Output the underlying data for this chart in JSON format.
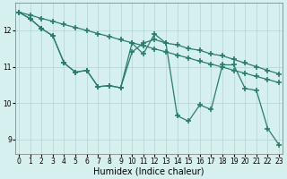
{
  "xlabel": "Humidex (Indice chaleur)",
  "x_ticks": [
    0,
    1,
    2,
    3,
    4,
    5,
    6,
    7,
    8,
    9,
    10,
    11,
    12,
    13,
    14,
    15,
    16,
    17,
    18,
    19,
    20,
    21,
    22,
    23
  ],
  "series": [
    {
      "name": "line_diagonal",
      "x": [
        0,
        1,
        2,
        3,
        4,
        5,
        6,
        7,
        8,
        9,
        10,
        11,
        12,
        13,
        14,
        15,
        16,
        17,
        18,
        19,
        20,
        21,
        22,
        23
      ],
      "y": [
        12.5,
        12.42,
        12.33,
        12.25,
        12.16,
        12.08,
        12.0,
        11.91,
        11.83,
        11.74,
        11.66,
        11.58,
        11.49,
        11.41,
        11.32,
        11.24,
        11.15,
        11.07,
        10.99,
        10.9,
        10.82,
        10.73,
        10.65,
        10.56
      ]
    },
    {
      "name": "line_medium",
      "x": [
        0,
        1,
        2,
        3,
        4,
        5,
        6,
        7,
        8,
        9,
        10,
        11,
        12,
        13,
        14,
        15,
        16,
        17,
        18,
        19,
        20,
        21,
        22,
        23
      ],
      "y": [
        12.5,
        12.32,
        12.05,
        11.85,
        11.1,
        10.85,
        10.9,
        10.45,
        10.48,
        10.42,
        11.4,
        11.65,
        11.75,
        11.65,
        11.6,
        11.5,
        11.45,
        11.35,
        11.3,
        11.2,
        11.1,
        11.0,
        10.9,
        10.8
      ]
    },
    {
      "name": "line_volatile",
      "x": [
        0,
        1,
        2,
        3,
        4,
        5,
        6,
        7,
        8,
        9,
        10,
        11,
        12,
        13,
        14,
        15,
        16,
        17,
        18,
        19,
        20,
        21,
        22,
        23
      ],
      "y": [
        12.5,
        12.32,
        12.05,
        11.85,
        11.1,
        10.85,
        10.9,
        10.45,
        10.48,
        10.42,
        11.65,
        11.35,
        11.9,
        11.65,
        9.65,
        9.5,
        9.95,
        9.82,
        11.05,
        11.05,
        10.4,
        10.35,
        9.3,
        8.85
      ]
    }
  ],
  "yticks": [
    9,
    10,
    11,
    12
  ],
  "ylim": [
    8.6,
    12.75
  ],
  "xlim": [
    -0.3,
    23.3
  ],
  "line_color": "#2a7d6b",
  "marker": "+",
  "markersize": 4,
  "markeredgewidth": 1.2,
  "linewidth": 0.9,
  "bg_color": "#d6efef",
  "grid_color": "#b8d8d8",
  "tick_fontsize": 5.5,
  "label_fontsize": 7.0
}
